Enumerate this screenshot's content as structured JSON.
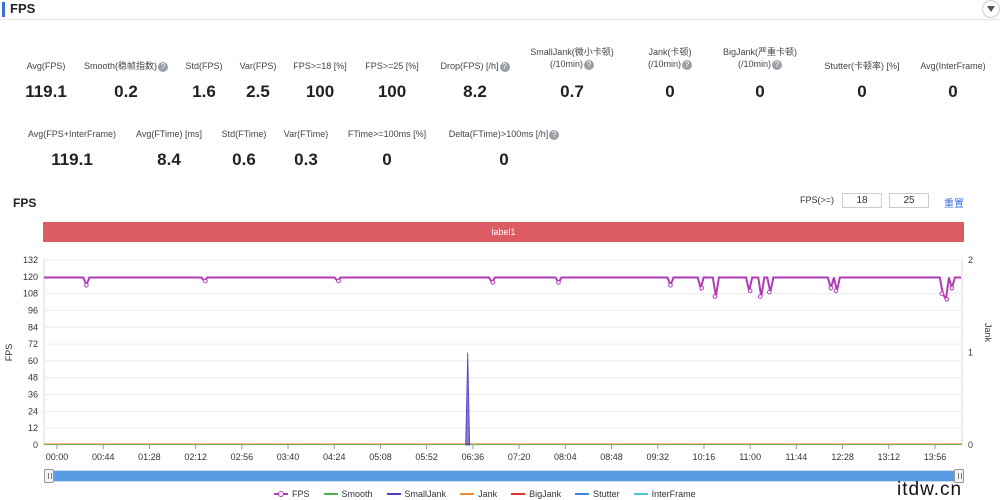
{
  "header": {
    "title": "FPS"
  },
  "metrics_row1": [
    {
      "label": "Avg(FPS)",
      "value": "119.1",
      "help": false
    },
    {
      "label": "Smooth(稳帧指数)",
      "value": "0.2",
      "help": true
    },
    {
      "label": "Std(FPS)",
      "value": "1.6",
      "help": false
    },
    {
      "label": "Var(FPS)",
      "value": "2.5",
      "help": false
    },
    {
      "label": "FPS>=18 [%]",
      "value": "100",
      "help": false
    },
    {
      "label": "FPS>=25 [%]",
      "value": "100",
      "help": false
    },
    {
      "label": "Drop(FPS) [/h]",
      "value": "8.2",
      "help": true
    },
    {
      "label": "SmallJank(微小卡顿)",
      "label2": "(/10min)",
      "value": "0.7",
      "help": true
    },
    {
      "label": "Jank(卡顿)",
      "label2": "(/10min)",
      "value": "0",
      "help": true
    },
    {
      "label": "BigJank(严重卡顿)",
      "label2": "(/10min)",
      "value": "0",
      "help": true
    },
    {
      "label": "Stutter(卡顿率) [%]",
      "value": "0",
      "help": false
    },
    {
      "label": "Avg(InterFrame)",
      "value": "0",
      "help": false
    }
  ],
  "metrics_row2": [
    {
      "label": "Avg(FPS+InterFrame)",
      "value": "119.1",
      "help": false
    },
    {
      "label": "Avg(FTime) [ms]",
      "value": "8.4",
      "help": false
    },
    {
      "label": "Std(FTime)",
      "value": "0.6",
      "help": false
    },
    {
      "label": "Var(FTime)",
      "value": "0.3",
      "help": false
    },
    {
      "label": "FTime>=100ms [%]",
      "value": "0",
      "help": false
    },
    {
      "label": "Delta(FTime)>100ms [/h]",
      "value": "0",
      "help": true
    }
  ],
  "chart_panel": {
    "title": "FPS",
    "threshold_label": "FPS(>=)",
    "threshold_1": "18",
    "threshold_2": "25",
    "reset_label": "重置",
    "label_bar": "label1"
  },
  "chart_data": {
    "type": "line",
    "ylabel": "FPS",
    "y2label": "Jank",
    "ylim": [
      0,
      132
    ],
    "y2lim": [
      0,
      2
    ],
    "y_ticks": [
      "0",
      "12",
      "24",
      "36",
      "48",
      "60",
      "72",
      "84",
      "96",
      "108",
      "120",
      "132"
    ],
    "y2_ticks": [
      "0",
      "1",
      "2"
    ],
    "x_ticks": [
      "00:00",
      "00:44",
      "01:28",
      "02:12",
      "02:56",
      "03:40",
      "04:24",
      "05:08",
      "05:52",
      "06:36",
      "07:20",
      "08:04",
      "08:48",
      "09:32",
      "10:16",
      "11:00",
      "11:44",
      "12:28",
      "13:12",
      "13:56"
    ],
    "duration_s": 910,
    "fps_base": 119.5,
    "fps_dips": [
      {
        "t": 42,
        "v": 114
      },
      {
        "t": 160,
        "v": 117
      },
      {
        "t": 292,
        "v": 117
      },
      {
        "t": 445,
        "v": 116
      },
      {
        "t": 510,
        "v": 116
      },
      {
        "t": 621,
        "v": 114
      },
      {
        "t": 652,
        "v": 112
      },
      {
        "t": 665,
        "v": 106
      },
      {
        "t": 700,
        "v": 110
      },
      {
        "t": 710,
        "v": 106
      },
      {
        "t": 719,
        "v": 109
      },
      {
        "t": 780,
        "v": 112
      },
      {
        "t": 785,
        "v": 110
      },
      {
        "t": 890,
        "v": 108
      },
      {
        "t": 895,
        "v": 104
      },
      {
        "t": 900,
        "v": 112
      }
    ],
    "small_jank_spike": {
      "t": 420,
      "v": 1
    },
    "series": [
      {
        "name": "FPS",
        "color": "#b13ab7"
      },
      {
        "name": "Smooth",
        "color": "#4caf50"
      },
      {
        "name": "SmallJank",
        "color": "#4b3fc7"
      },
      {
        "name": "Jank",
        "color": "#f08a2c"
      },
      {
        "name": "BigJank",
        "color": "#d93a2e"
      },
      {
        "name": "Stutter",
        "color": "#3a86e0"
      },
      {
        "name": "InterFrame",
        "color": "#4fc6df"
      }
    ]
  },
  "watermark": "itdw.cn"
}
